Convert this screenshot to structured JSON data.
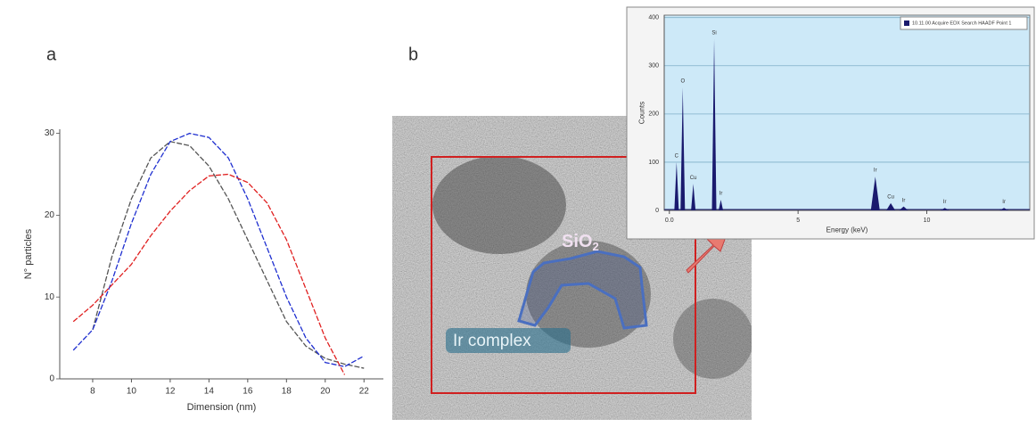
{
  "figure": {
    "panel_labels": [
      "a",
      "b"
    ],
    "image_annotations": {
      "shell": "SiO",
      "shell_subscript": "2",
      "core": "Ir complex"
    }
  },
  "chart_data": [
    {
      "type": "line",
      "xlabel": "Dimension (nm)",
      "ylabel": "N° particles",
      "x": [
        7,
        8,
        9,
        10,
        11,
        12,
        13,
        14,
        15,
        16,
        17,
        18,
        19,
        20,
        21,
        22
      ],
      "series": [
        {
          "color": "#555555",
          "values": [
            null,
            6,
            15,
            22,
            27,
            29,
            28.5,
            26,
            22,
            17,
            12,
            7,
            4,
            2.5,
            1.8,
            1.3
          ]
        },
        {
          "color": "#1f2fd0",
          "values": [
            3.5,
            6,
            12,
            19,
            25,
            29,
            30,
            29.5,
            27,
            22,
            16,
            10,
            5,
            2,
            1.5,
            2.8
          ]
        },
        {
          "color": "#e02020",
          "values": [
            7,
            9,
            11.5,
            14,
            17.5,
            20.5,
            23,
            24.8,
            25,
            24,
            21.5,
            17,
            11,
            5,
            0.5,
            null
          ]
        }
      ],
      "xlim": [
        6.3,
        23
      ],
      "ylim": [
        0,
        30.5
      ],
      "xticks": [
        8,
        10,
        12,
        14,
        16,
        18,
        20,
        22
      ],
      "yticks": [
        0,
        10,
        20,
        30
      ]
    },
    {
      "type": "spectrum",
      "xlabel": "Energy (keV)",
      "ylabel": "Counts",
      "series": [
        {
          "name": "10.11.00 Acquire EDX Search HAADF Point 1",
          "color": "#1a1a6e",
          "x": [
            0.28,
            0.52,
            0.93,
            1.74,
            2.0,
            8.0,
            8.6,
            9.1,
            10.7,
            13.0
          ],
          "values": [
            100,
            255,
            55,
            355,
            22,
            70,
            15,
            8,
            5,
            5
          ],
          "labels": [
            "C",
            "O",
            "Cu",
            "Si",
            "Ir",
            "Ir",
            "Cu",
            "Ir",
            "Ir",
            "Ir"
          ]
        }
      ],
      "xlim": [
        -0.2,
        14
      ],
      "ylim": [
        0,
        405
      ],
      "xticks": [
        {
          "value": 0,
          "label": "0.0"
        },
        5,
        10
      ],
      "yticks": [
        0,
        100,
        200,
        300,
        400
      ],
      "grid": true
    }
  ]
}
